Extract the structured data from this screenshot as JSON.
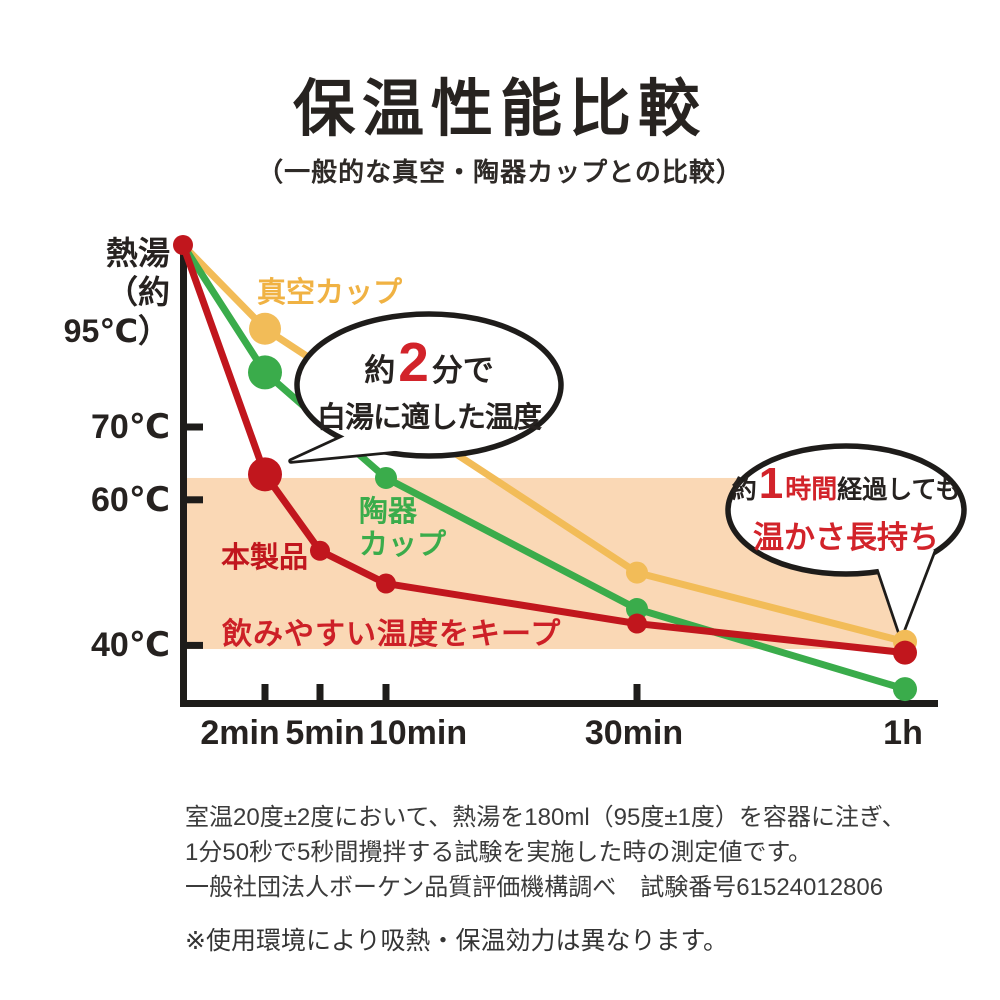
{
  "title": "保温性能比較",
  "subtitle": "（一般的な真空・陶器カップとの比較）",
  "chart_data": {
    "type": "line",
    "title": "保温性能比較",
    "x_axis_unit": "time",
    "y_axis_unit": "℃",
    "y_axis_top_label": "熱湯\n（約95℃）",
    "y_ticks": [
      {
        "label": "70℃",
        "temp": 70
      },
      {
        "label": "60℃",
        "temp": 60
      },
      {
        "label": "40℃",
        "temp": 40
      }
    ],
    "x_ticks": [
      {
        "label": "2min",
        "t": 2
      },
      {
        "label": "5min",
        "t": 5
      },
      {
        "label": "10min",
        "t": 10
      },
      {
        "label": "30min",
        "t": 30
      },
      {
        "label": "1h",
        "t": 60
      }
    ],
    "ylim": [
      30,
      95
    ],
    "series": [
      {
        "name": "真空カップ",
        "color": "#f2bc58",
        "points": [
          {
            "t": 0,
            "temp": 95
          },
          {
            "t": 2,
            "temp": 83.5,
            "r": 16
          },
          {
            "t": 30,
            "temp": 50,
            "r": 11
          },
          {
            "t": 60,
            "temp": 40.5,
            "r": 12
          }
        ]
      },
      {
        "name": "陶器カップ",
        "color": "#3aac4b",
        "points": [
          {
            "t": 0,
            "temp": 95
          },
          {
            "t": 2,
            "temp": 77.5,
            "r": 17
          },
          {
            "t": 10,
            "temp": 63,
            "r": 11
          },
          {
            "t": 30,
            "temp": 45,
            "r": 11
          },
          {
            "t": 60,
            "temp": 34,
            "r": 12
          }
        ]
      },
      {
        "name": "本製品",
        "color": "#c1161d",
        "points": [
          {
            "t": 0,
            "temp": 95,
            "r": 10
          },
          {
            "t": 2,
            "temp": 63.5,
            "r": 17
          },
          {
            "t": 5,
            "temp": 53,
            "r": 10
          },
          {
            "t": 10,
            "temp": 48.5,
            "r": 10
          },
          {
            "t": 30,
            "temp": 43,
            "r": 10
          },
          {
            "t": 60,
            "temp": 39,
            "r": 12
          }
        ]
      }
    ],
    "band": {
      "from_temp": 39.5,
      "to_temp": 63,
      "label": "飲みやすい温度をキープ"
    },
    "series_labels": {
      "vacuum": "真空カップ",
      "ceramic": "陶器\nカップ",
      "product": "本製品"
    }
  },
  "annotations": {
    "bubble1": {
      "p1": "約",
      "num": "2",
      "p2": "分で",
      "line2": "白湯に適した温度"
    },
    "bubble2": {
      "p1": "約",
      "num": "1",
      "unit": "時間",
      "p2": "経過しても",
      "line2": "温かさ長持ち"
    }
  },
  "footer": {
    "text": "室温20度±2度において、熱湯を180ml（95度±1度）を容器に注ぎ、\n1分50秒で5秒間攪拌する試験を実施した時の測定値です。\n一般社団法人ボーケン品質評価機構調べ　試験番号61524012806",
    "note": "※使用環境により吸熱・保温効力は異なります。"
  },
  "colors": {
    "vacuum": "#f2bc58",
    "ceramic": "#3aac4b",
    "product_line": "#c1161d",
    "accent_red": "#d2232a",
    "band": "#fad8b5",
    "ink": "#1e1c1a"
  }
}
